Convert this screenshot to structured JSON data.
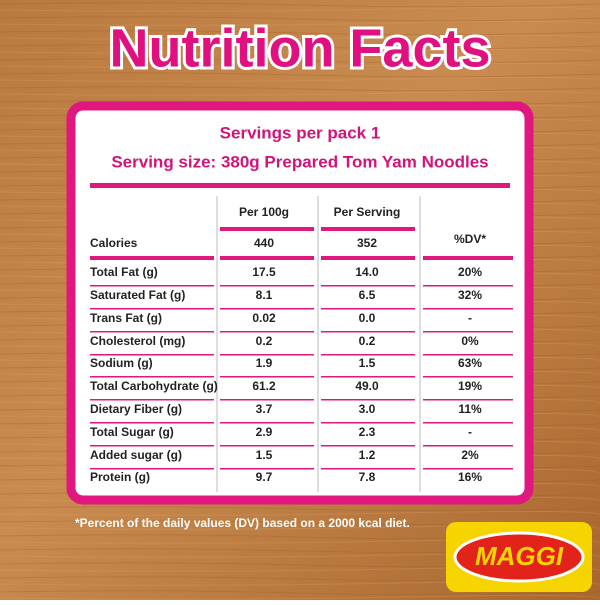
{
  "title": "Nutrition Facts",
  "servings": "Servings per pack 1",
  "serving_size": "Serving size: 380g Prepared Tom Yam Noodles",
  "table": {
    "headers": [
      "Per 100g",
      "Per Serving",
      "%DV*"
    ],
    "rows": [
      {
        "label": "Calories",
        "per_100g": "440",
        "per_serving": "352"
      },
      {
        "label": "Total Fat (g)",
        "per_100g": "17.5",
        "per_serving": "14.0",
        "dv": "20%"
      },
      {
        "label": "Saturated Fat (g)",
        "per_100g": "8.1",
        "per_serving": "6.5",
        "dv": "32%"
      },
      {
        "label": "Trans Fat (g)",
        "per_100g": "0.02",
        "per_serving": "0.0",
        "dv": "-"
      },
      {
        "label": "Cholesterol (mg)",
        "per_100g": "0.2",
        "per_serving": "0.2",
        "dv": "0%"
      },
      {
        "label": "Sodium (g)",
        "per_100g": "1.9",
        "per_serving": "1.5",
        "dv": "63%"
      },
      {
        "label": "Total Carbohydrate (g)",
        "per_100g": "61.2",
        "per_serving": "49.0",
        "dv": "19%"
      },
      {
        "label": "Dietary Fiber (g)",
        "per_100g": "3.7",
        "per_serving": "3.0",
        "dv": "11%"
      },
      {
        "label": "Total Sugar (g)",
        "per_100g": "2.9",
        "per_serving": "2.3",
        "dv": "-"
      },
      {
        "label": "Added sugar (g)",
        "per_100g": "1.5",
        "per_serving": "1.2",
        "dv": "2%"
      },
      {
        "label": "Protein (g)",
        "per_100g": "9.7",
        "per_serving": "7.8",
        "dv": "16%"
      }
    ]
  },
  "footnote": "*Percent of the daily values (DV) based on a 2000 kcal diet.",
  "logo": "MAGGI"
}
